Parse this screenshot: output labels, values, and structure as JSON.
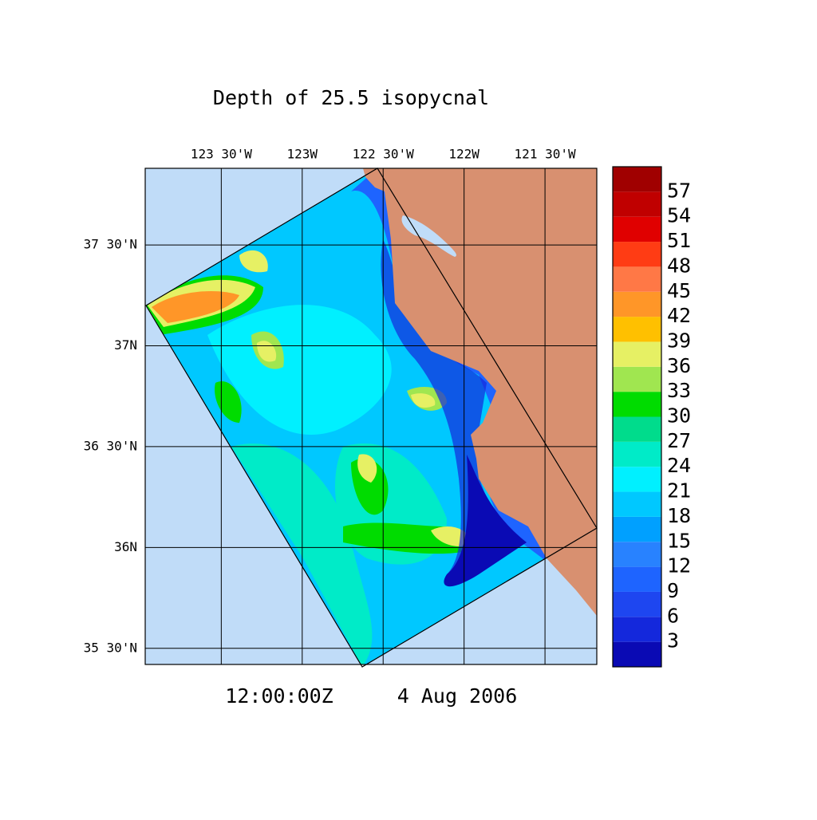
{
  "title": "Depth of 25.5 isopycnal",
  "time": "12:00:00Z",
  "date": "4 Aug 2006",
  "map": {
    "lonlim": [
      -123.97,
      -121.18
    ],
    "latlim": [
      35.42,
      37.88
    ],
    "lonticks": [
      {
        "value": -123.5,
        "label": "123 30'W"
      },
      {
        "value": -123,
        "label": "123W"
      },
      {
        "value": -122.5,
        "label": "122 30'W"
      },
      {
        "value": -122,
        "label": "122W"
      },
      {
        "value": -121.5,
        "label": "121 30'W"
      }
    ],
    "latticks": [
      {
        "value": 37.5,
        "label": "37 30'N"
      },
      {
        "value": 37,
        "label": "37N"
      },
      {
        "value": 36.5,
        "label": "36 30'N"
      },
      {
        "value": 36,
        "label": "36N"
      },
      {
        "value": 35.5,
        "label": "35 30'N"
      }
    ]
  },
  "colorbar": {
    "levels": [
      3,
      6,
      9,
      12,
      15,
      18,
      21,
      24,
      27,
      30,
      33,
      36,
      39,
      42,
      45,
      48,
      51,
      54,
      57
    ],
    "colors": [
      "#0a0ab4",
      "#1428dc",
      "#1e46f0",
      "#1e64ff",
      "#2882ff",
      "#00a0ff",
      "#00c8ff",
      "#00f0ff",
      "#00ebc8",
      "#00dc8c",
      "#00dc00",
      "#a0e650",
      "#e6f064",
      "#ffc000",
      "#ff9628",
      "#ff7846",
      "#ff3c14",
      "#e00000",
      "#c00000",
      "#a00000"
    ]
  }
}
